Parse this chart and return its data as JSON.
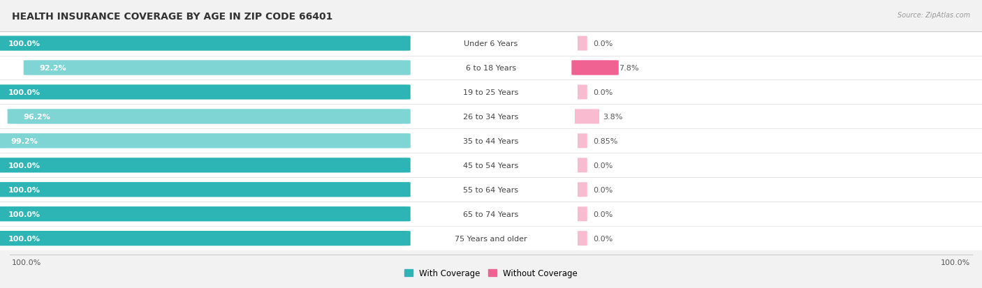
{
  "title": "HEALTH INSURANCE COVERAGE BY AGE IN ZIP CODE 66401",
  "source": "Source: ZipAtlas.com",
  "categories": [
    "Under 6 Years",
    "6 to 18 Years",
    "19 to 25 Years",
    "26 to 34 Years",
    "35 to 44 Years",
    "45 to 54 Years",
    "55 to 64 Years",
    "65 to 74 Years",
    "75 Years and older"
  ],
  "with_coverage": [
    100.0,
    92.2,
    100.0,
    96.2,
    99.2,
    100.0,
    100.0,
    100.0,
    100.0
  ],
  "without_coverage": [
    0.0,
    7.8,
    0.0,
    3.8,
    0.85,
    0.0,
    0.0,
    0.0,
    0.0
  ],
  "with_coverage_labels": [
    "100.0%",
    "92.2%",
    "100.0%",
    "96.2%",
    "99.2%",
    "100.0%",
    "100.0%",
    "100.0%",
    "100.0%"
  ],
  "without_coverage_labels": [
    "0.0%",
    "7.8%",
    "0.0%",
    "3.8%",
    "0.85%",
    "0.0%",
    "0.0%",
    "0.0%",
    "0.0%"
  ],
  "color_with_dark": "#2db5b5",
  "color_with_light": "#7fd4d4",
  "color_without_dark": "#f06292",
  "color_without_light": "#f8bbd0",
  "bg_color": "#f2f2f2",
  "row_bg_white": "#ffffff",
  "row_bg_light": "#f7f7f7",
  "title_fontsize": 10,
  "label_fontsize": 8,
  "pct_label_fontsize": 8,
  "bar_height": 0.7,
  "max_val": 100.0,
  "x_left_label": "100.0%",
  "x_right_label": "100.0%",
  "legend_with": "With Coverage",
  "legend_without": "Without Coverage"
}
